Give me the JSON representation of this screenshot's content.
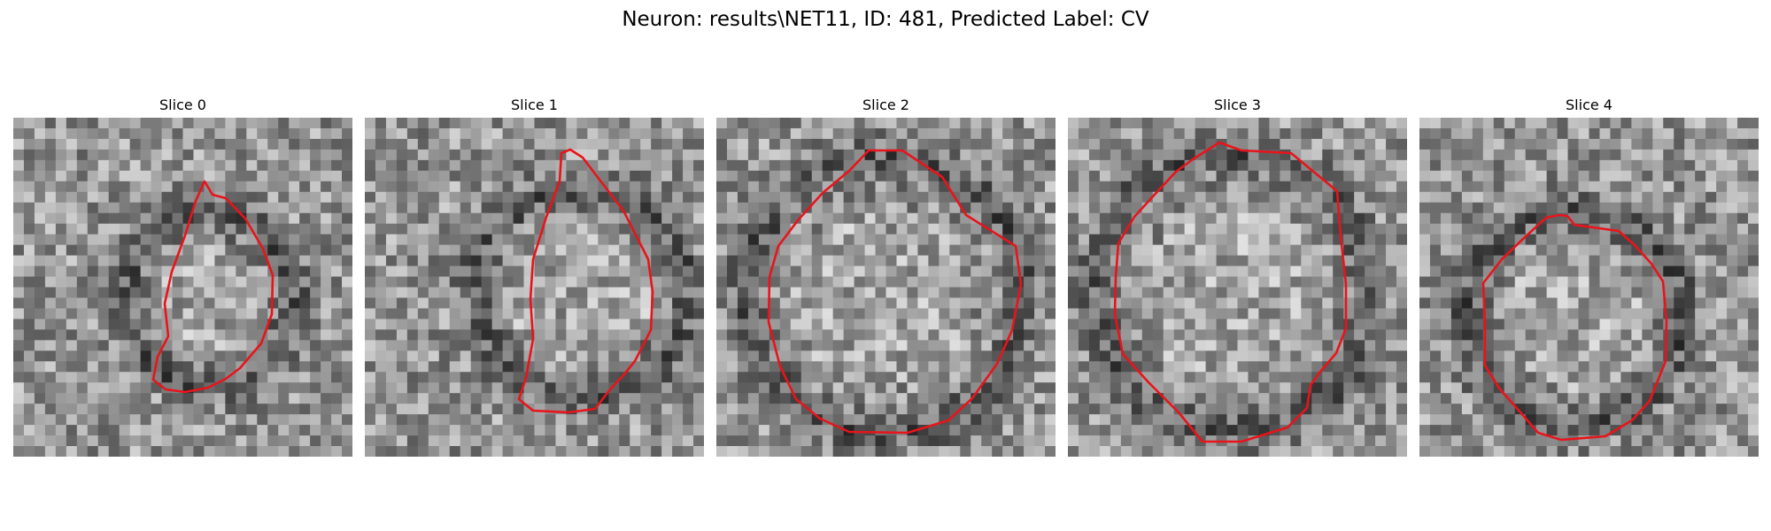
{
  "figure": {
    "title": "Neuron: results\\NET11, ID: 481, Predicted Label: CV"
  },
  "slices": [
    {
      "label": "Slice 0",
      "image": "noisy-grayscale-em-patch"
    },
    {
      "label": "Slice 1",
      "image": "noisy-grayscale-em-patch"
    },
    {
      "label": "Slice 2",
      "image": "noisy-grayscale-em-patch"
    },
    {
      "label": "Slice 3",
      "image": "noisy-grayscale-em-patch"
    },
    {
      "label": "Slice 4",
      "image": "noisy-grayscale-em-patch"
    }
  ],
  "colors": {
    "contour": "#e8141b",
    "background": "#ffffff"
  }
}
